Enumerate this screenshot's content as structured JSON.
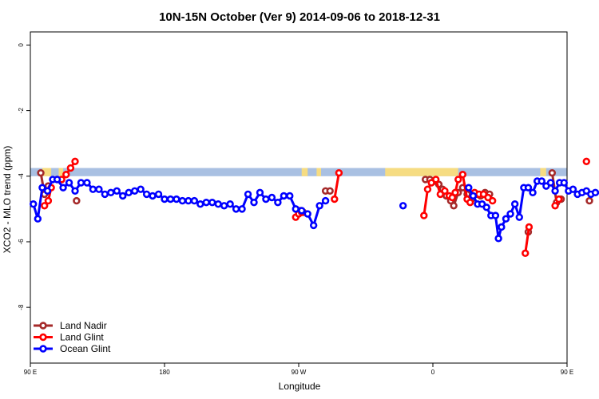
{
  "chart_data": {
    "type": "line",
    "title": "10N-15N October (Ver 9)   2014-09-06 to 2018-12-31",
    "xlabel": "Longitude",
    "ylabel": "XCO2 - MLO trend (ppm)",
    "xlim": [
      90,
      450
    ],
    "ylim": [
      -9.7,
      0.4
    ],
    "x_ticks": [
      {
        "value": 90,
        "label": "90 E"
      },
      {
        "value": 180,
        "label": "180"
      },
      {
        "value": 270,
        "label": "90 W"
      },
      {
        "value": 360,
        "label": "0"
      },
      {
        "value": 450,
        "label": "90 E"
      },
      {
        "value": 540,
        "label": "180"
      }
    ],
    "y_ticks": [
      {
        "value": 0,
        "label": "0"
      },
      {
        "value": -2,
        "label": "-2"
      },
      {
        "value": -4,
        "label": "-4"
      },
      {
        "value": -6,
        "label": "-6"
      },
      {
        "value": -8,
        "label": "-8"
      }
    ],
    "grid": false,
    "legend_position": "bottom-left",
    "map_strip": {
      "y_top": -3.75,
      "y_bottom": -4.0,
      "ocean_color": "#a9c0e2",
      "land_color": "#f6dc82",
      "land_segments": [
        [
          98,
          104
        ],
        [
          109,
          112
        ],
        [
          272,
          276
        ],
        [
          282,
          285
        ],
        [
          328,
          377
        ],
        [
          432,
          436
        ],
        [
          455,
          468
        ]
      ]
    },
    "series": [
      {
        "name": "Land Nadir",
        "color": "#a52a2a",
        "segments": [
          [
            [
              97,
              -3.9
            ],
            [
              99.5,
              -4.55
            ],
            [
              102,
              -4.3
            ]
          ],
          [
            [
              121,
              -4.75
            ]
          ],
          [
            [
              271,
              -5.05
            ],
            [
              273,
              -5.1
            ]
          ],
          [
            [
              288,
              -4.45
            ],
            [
              291,
              -4.45
            ]
          ],
          [
            [
              355,
              -4.1
            ],
            [
              358,
              -4.1
            ],
            [
              361,
              -4.15
            ],
            [
              364,
              -4.25
            ],
            [
              366.5,
              -4.4
            ],
            [
              369,
              -4.6
            ],
            [
              372,
              -4.75
            ],
            [
              374,
              -4.9
            ],
            [
              377,
              -4.5
            ],
            [
              380,
              -4.35
            ],
            [
              383,
              -4.55
            ],
            [
              386,
              -4.7
            ],
            [
              389,
              -4.55
            ],
            [
              392,
              -4.6
            ],
            [
              395,
              -4.5
            ],
            [
              398,
              -4.55
            ]
          ],
          [
            [
              424,
              -5.7
            ]
          ],
          [
            [
              440,
              -3.9
            ],
            [
              443,
              -4.8
            ],
            [
              446,
              -4.7
            ]
          ],
          [
            [
              465,
              -4.75
            ]
          ]
        ]
      },
      {
        "name": "Land Glint",
        "color": "#ff0000",
        "segments": [
          [
            [
              99.5,
              -4.9
            ],
            [
              102,
              -4.75
            ],
            [
              104,
              -4.35
            ]
          ],
          [
            [
              108,
              -4.1
            ],
            [
              111,
              -4.1
            ],
            [
              114,
              -3.95
            ],
            [
              117,
              -3.75
            ],
            [
              120,
              -3.55
            ]
          ],
          [
            [
              268,
              -5.25
            ],
            [
              270,
              -5.15
            ],
            [
              272,
              -5.1
            ]
          ],
          [
            [
              294,
              -4.7
            ],
            [
              297,
              -3.9
            ]
          ],
          [
            [
              354,
              -5.2
            ],
            [
              356.5,
              -4.4
            ],
            [
              359,
              -4.2
            ],
            [
              362,
              -4.1
            ],
            [
              365,
              -4.55
            ],
            [
              368,
              -4.45
            ],
            [
              371,
              -4.6
            ],
            [
              373,
              -4.65
            ],
            [
              375,
              -4.5
            ],
            [
              377,
              -4.1
            ],
            [
              380,
              -3.95
            ],
            [
              383,
              -4.7
            ],
            [
              385,
              -4.8
            ],
            [
              388,
              -4.5
            ],
            [
              391,
              -4.55
            ],
            [
              394,
              -4.55
            ],
            [
              397,
              -4.65
            ],
            [
              400,
              -4.75
            ]
          ],
          [
            [
              422,
              -6.35
            ],
            [
              424.5,
              -5.55
            ]
          ],
          [
            [
              442,
              -4.9
            ],
            [
              444.5,
              -4.7
            ]
          ],
          [
            [
              463,
              -3.55
            ]
          ]
        ]
      },
      {
        "name": "Ocean Glint",
        "color": "#0000ff",
        "segments": [
          [
            [
              92,
              -4.85
            ],
            [
              95,
              -5.3
            ],
            [
              98,
              -4.35
            ],
            [
              101.5,
              -4.45
            ],
            [
              105,
              -4.1
            ],
            [
              108,
              -4.1
            ],
            [
              112,
              -4.35
            ],
            [
              116,
              -4.2
            ],
            [
              120,
              -4.45
            ],
            [
              124,
              -4.2
            ],
            [
              128,
              -4.2
            ],
            [
              132,
              -4.4
            ],
            [
              136,
              -4.4
            ],
            [
              140,
              -4.55
            ],
            [
              144,
              -4.5
            ],
            [
              148,
              -4.45
            ],
            [
              152,
              -4.6
            ],
            [
              156,
              -4.5
            ],
            [
              160,
              -4.45
            ],
            [
              164,
              -4.4
            ],
            [
              168,
              -4.55
            ],
            [
              172,
              -4.6
            ],
            [
              176,
              -4.55
            ],
            [
              180,
              -4.7
            ],
            [
              184,
              -4.7
            ],
            [
              188,
              -4.7
            ],
            [
              192,
              -4.75
            ],
            [
              196,
              -4.75
            ],
            [
              200,
              -4.75
            ],
            [
              204,
              -4.85
            ],
            [
              208,
              -4.8
            ],
            [
              212,
              -4.8
            ],
            [
              216,
              -4.85
            ],
            [
              220,
              -4.9
            ],
            [
              224,
              -4.85
            ],
            [
              228,
              -5.0
            ],
            [
              232,
              -5.0
            ],
            [
              236,
              -4.55
            ],
            [
              240,
              -4.8
            ],
            [
              244,
              -4.5
            ],
            [
              248,
              -4.7
            ],
            [
              252,
              -4.65
            ],
            [
              256,
              -4.8
            ],
            [
              260,
              -4.6
            ],
            [
              264,
              -4.6
            ],
            [
              268,
              -5.0
            ],
            [
              272,
              -5.05
            ],
            [
              276,
              -5.15
            ],
            [
              280,
              -5.5
            ],
            [
              284,
              -4.9
            ],
            [
              288,
              -4.75
            ]
          ],
          [
            [
              340,
              -4.9
            ]
          ],
          [
            [
              384,
              -4.35
            ],
            [
              387,
              -4.6
            ],
            [
              390,
              -4.85
            ],
            [
              393,
              -4.85
            ],
            [
              396,
              -4.95
            ],
            [
              399,
              -5.2
            ],
            [
              402,
              -5.2
            ],
            [
              404,
              -5.9
            ],
            [
              406,
              -5.55
            ],
            [
              409,
              -5.3
            ],
            [
              412,
              -5.15
            ],
            [
              415,
              -4.85
            ],
            [
              418,
              -5.25
            ],
            [
              421,
              -4.35
            ],
            [
              424,
              -4.35
            ],
            [
              427,
              -4.5
            ],
            [
              430,
              -4.15
            ],
            [
              433,
              -4.15
            ],
            [
              436,
              -4.3
            ],
            [
              439,
              -4.2
            ],
            [
              442,
              -4.45
            ],
            [
              445,
              -4.2
            ],
            [
              448,
              -4.2
            ],
            [
              451,
              -4.45
            ],
            [
              454,
              -4.4
            ],
            [
              457,
              -4.55
            ],
            [
              460,
              -4.5
            ],
            [
              463,
              -4.45
            ],
            [
              466,
              -4.55
            ],
            [
              469,
              -4.5
            ]
          ]
        ]
      }
    ]
  }
}
